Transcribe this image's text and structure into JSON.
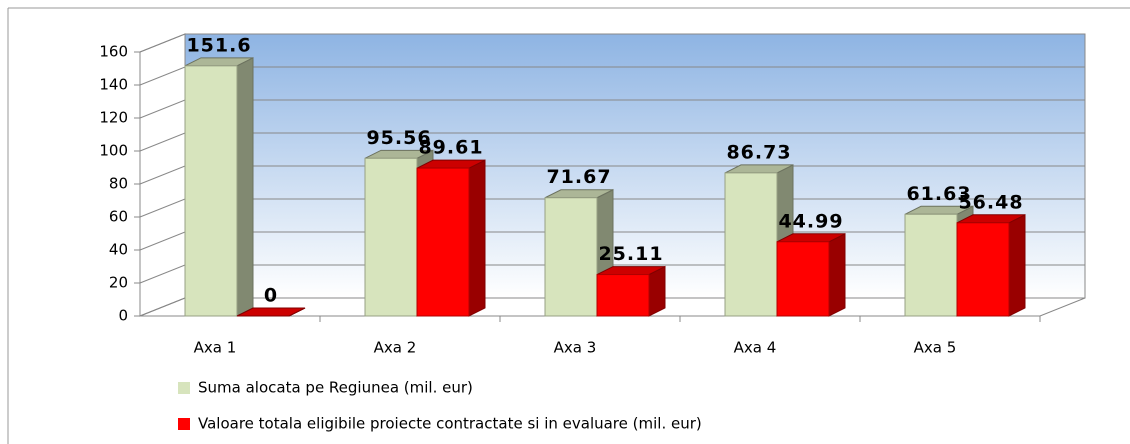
{
  "chart_data": {
    "type": "bar3d",
    "categories": [
      "Axa 1",
      "Axa 2",
      "Axa 3",
      "Axa 4",
      "Axa 5"
    ],
    "series": [
      {
        "name": "Suma alocata pe Regiunea (mil. eur)",
        "color": "#d7e4bd",
        "values": [
          151.6,
          95.56,
          71.67,
          86.73,
          61.63
        ]
      },
      {
        "name": "Valoare totala eligibile proiecte contractate si in evaluare (mil. eur)",
        "color": "#ff0000",
        "values": [
          0,
          89.61,
          25.11,
          44.99,
          56.48
        ]
      }
    ],
    "ylim": [
      0,
      160
    ],
    "yticks": [
      0,
      20,
      40,
      60,
      80,
      100,
      120,
      140,
      160
    ],
    "grid": true,
    "legend": "bottom"
  }
}
